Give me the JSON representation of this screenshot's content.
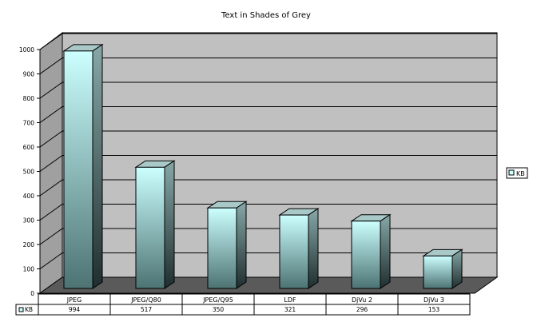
{
  "chart_data": {
    "type": "bar",
    "title": "Text in Shades of Grey",
    "categories": [
      "JPEG",
      "JPEG/Q80",
      "JPEG/Q95",
      "LDF",
      "DjVu 2",
      "DjVu 3"
    ],
    "series": [
      {
        "name": "KB",
        "values": [
          994,
          517,
          350,
          321,
          296,
          153
        ],
        "value_labels": [
          "994",
          "517",
          "350",
          "321",
          "296",
          "153"
        ]
      }
    ],
    "ylim": [
      0,
      1000
    ],
    "yticks": [
      "0",
      "100",
      "200",
      "300",
      "400",
      "500",
      "600",
      "700",
      "800",
      "900",
      "1000"
    ],
    "grid": true,
    "legend": "right",
    "data_table": true,
    "colors": {
      "bar_front_top": "#ccffff",
      "bar_front_bottom": "#4d7373",
      "bar_side_top": "#88a8a8",
      "bar_side_bottom": "#1f2e2e",
      "bar_top": "#a9c9c9",
      "back_wall": "#c0c0c0",
      "side_wall": "#a0a0a0",
      "floor": "#5a5a5a"
    }
  }
}
